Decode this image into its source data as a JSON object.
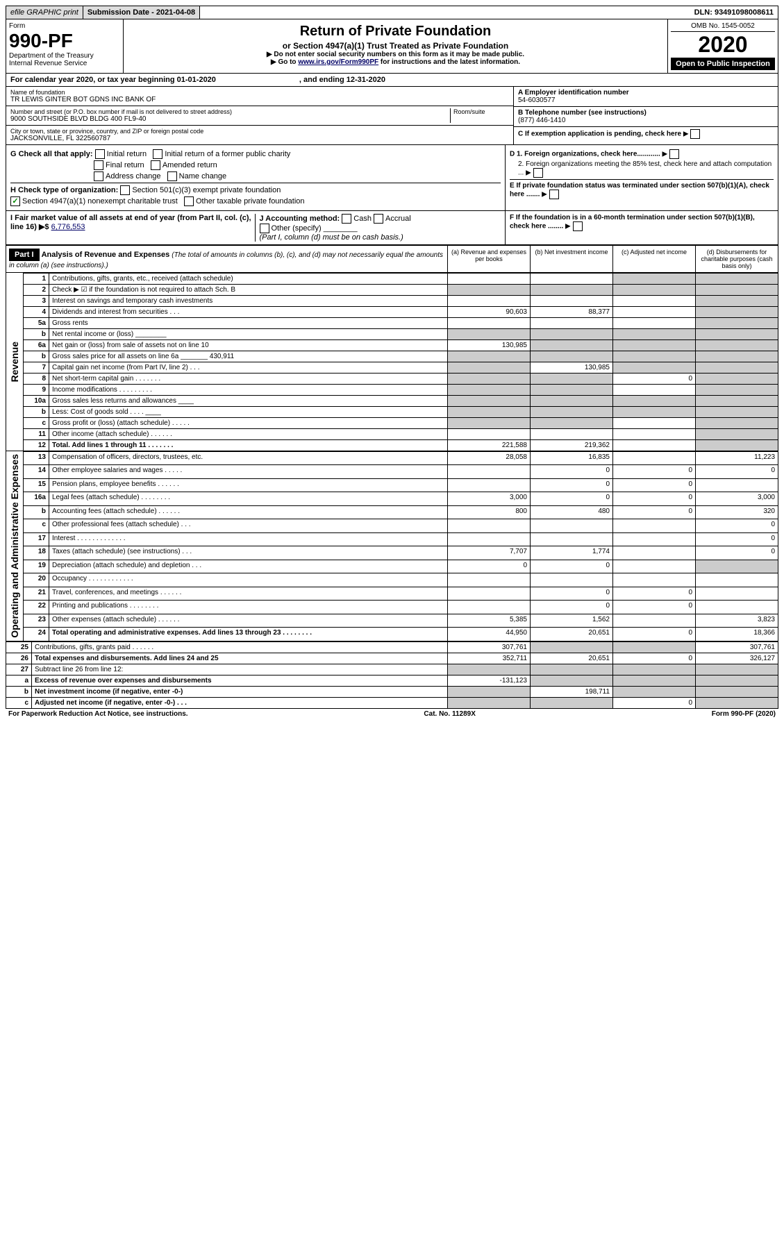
{
  "top": {
    "efile": "efile GRAPHIC print",
    "sub_lbl": "Submission Date - 2021-04-08",
    "dln": "DLN: 93491098008611"
  },
  "hdr": {
    "form_word": "Form",
    "form_num": "990-PF",
    "dept": "Department of the Treasury",
    "irs": "Internal Revenue Service",
    "title": "Return of Private Foundation",
    "subtitle": "or Section 4947(a)(1) Trust Treated as Private Foundation",
    "note1": "▶ Do not enter social security numbers on this form as it may be made public.",
    "note2": "▶ Go to ",
    "note2_link": "www.irs.gov/Form990PF",
    "note2_tail": " for instructions and the latest information.",
    "omb": "OMB No. 1545-0052",
    "year": "2020",
    "open": "Open to Public Inspection"
  },
  "cal": {
    "line": "For calendar year 2020, or tax year beginning 01-01-2020",
    "end": ", and ending 12-31-2020"
  },
  "info": {
    "name_lbl": "Name of foundation",
    "name": "TR LEWIS GINTER BOT GDNS INC BANK OF",
    "addr_lbl": "Number and street (or P.O. box number if mail is not delivered to street address)",
    "room_lbl": "Room/suite",
    "addr": "9000 SOUTHSIDE BLVD BLDG 400 FL9-40",
    "city_lbl": "City or town, state or province, country, and ZIP or foreign postal code",
    "city": "JACKSONVILLE, FL 322560787",
    "a_lbl": "A Employer identification number",
    "a_val": "54-6030577",
    "b_lbl": "B Telephone number (see instructions)",
    "b_val": "(877) 446-1410",
    "c_lbl": "C If exemption application is pending, check here",
    "d1": "D 1. Foreign organizations, check here............",
    "d2": "2. Foreign organizations meeting the 85% test, check here and attach computation ...",
    "e": "E If private foundation status was terminated under section 507(b)(1)(A), check here .......",
    "f": "F If the foundation is in a 60-month termination under section 507(b)(1)(B), check here ........"
  },
  "g": {
    "lbl": "G Check all that apply:",
    "opts": [
      "Initial return",
      "Initial return of a former public charity",
      "Final return",
      "Amended return",
      "Address change",
      "Name change"
    ]
  },
  "h": {
    "lbl": "H Check type of organization:",
    "o1": "Section 501(c)(3) exempt private foundation",
    "o2": "Section 4947(a)(1) nonexempt charitable trust",
    "o3": "Other taxable private foundation"
  },
  "i": {
    "lbl": "I Fair market value of all assets at end of year (from Part II, col. (c), line 16) ▶$ ",
    "val": "6,776,553"
  },
  "j": {
    "lbl": "J Accounting method:",
    "cash": "Cash",
    "accrual": "Accrual",
    "other": "Other (specify)",
    "note": "(Part I, column (d) must be on cash basis.)"
  },
  "part1": {
    "hdr": "Part I",
    "title": "Analysis of Revenue and Expenses ",
    "desc": "(The total of amounts in columns (b), (c), and (d) may not necessarily equal the amounts in column (a) (see instructions).)",
    "cols": [
      "(a) Revenue and expenses per books",
      "(b) Net investment income",
      "(c) Adjusted net income",
      "(d) Disbursements for charitable purposes (cash basis only)"
    ]
  },
  "vlabels": {
    "rev": "Revenue",
    "exp": "Operating and Administrative Expenses"
  },
  "rows": [
    {
      "n": "1",
      "d": "Contributions, gifts, grants, etc., received (attach schedule)",
      "a": "",
      "b": "",
      "c": "g",
      "e": "g"
    },
    {
      "n": "2",
      "d": "Check ▶ ☑ if the foundation is not required to attach Sch. B",
      "a": "g",
      "b": "g",
      "c": "g",
      "e": "g"
    },
    {
      "n": "3",
      "d": "Interest on savings and temporary cash investments",
      "a": "",
      "b": "",
      "c": "",
      "e": "g"
    },
    {
      "n": "4",
      "d": "Dividends and interest from securities   .  .  .",
      "a": "90,603",
      "b": "88,377",
      "c": "",
      "e": "g"
    },
    {
      "n": "5a",
      "d": "Gross rents",
      "a": "",
      "b": "",
      "c": "",
      "e": "g"
    },
    {
      "n": "b",
      "d": "Net rental income or (loss)  ________",
      "a": "g",
      "b": "g",
      "c": "g",
      "e": "g"
    },
    {
      "n": "6a",
      "d": "Net gain or (loss) from sale of assets not on line 10",
      "a": "130,985",
      "b": "g",
      "c": "g",
      "e": "g"
    },
    {
      "n": "b",
      "d": "Gross sales price for all assets on line 6a _______ 430,911",
      "a": "g",
      "b": "g",
      "c": "g",
      "e": "g"
    },
    {
      "n": "7",
      "d": "Capital gain net income (from Part IV, line 2)   .  .  .",
      "a": "g",
      "b": "130,985",
      "c": "g",
      "e": "g"
    },
    {
      "n": "8",
      "d": "Net short-term capital gain   .  .  .  .  .  .  .",
      "a": "g",
      "b": "g",
      "c": "0",
      "e": "g"
    },
    {
      "n": "9",
      "d": "Income modifications  .  .  .  .  .  .  .  .  .",
      "a": "g",
      "b": "g",
      "c": "",
      "e": "g"
    },
    {
      "n": "10a",
      "d": "Gross sales less returns and allowances  ____",
      "a": "g",
      "b": "g",
      "c": "g",
      "e": "g"
    },
    {
      "n": "b",
      "d": "Less: Cost of goods sold    .  .  .  .  ____",
      "a": "g",
      "b": "g",
      "c": "g",
      "e": "g"
    },
    {
      "n": "c",
      "d": "Gross profit or (loss) (attach schedule)   .  .  .  .  .",
      "a": "g",
      "b": "g",
      "c": "",
      "e": "g"
    },
    {
      "n": "11",
      "d": "Other income (attach schedule)   .  .  .  .  .  .",
      "a": "",
      "b": "",
      "c": "",
      "e": "g"
    },
    {
      "n": "12",
      "d": "Total. Add lines 1 through 11   .  .  .  .  .  .  .",
      "a": "221,588",
      "b": "219,362",
      "c": "",
      "e": "g",
      "bold": true
    },
    {
      "n": "13",
      "d": "Compensation of officers, directors, trustees, etc.",
      "a": "28,058",
      "b": "16,835",
      "c": "",
      "e": "11,223"
    },
    {
      "n": "14",
      "d": "Other employee salaries and wages   .  .  .  .  .",
      "a": "",
      "b": "0",
      "c": "0",
      "e": "0"
    },
    {
      "n": "15",
      "d": "Pension plans, employee benefits   .  .  .  .  .  .",
      "a": "",
      "b": "0",
      "c": "0",
      "e": ""
    },
    {
      "n": "16a",
      "d": "Legal fees (attach schedule)  .  .  .  .  .  .  .  .",
      "a": "3,000",
      "b": "0",
      "c": "0",
      "e": "3,000"
    },
    {
      "n": "b",
      "d": "Accounting fees (attach schedule)  .  .  .  .  .  .",
      "a": "800",
      "b": "480",
      "c": "0",
      "e": "320"
    },
    {
      "n": "c",
      "d": "Other professional fees (attach schedule)   .  .  .",
      "a": "",
      "b": "",
      "c": "",
      "e": "0"
    },
    {
      "n": "17",
      "d": "Interest  .  .  .  .  .  .  .  .  .  .  .  .  .",
      "a": "",
      "b": "",
      "c": "",
      "e": "0"
    },
    {
      "n": "18",
      "d": "Taxes (attach schedule) (see instructions)   .  .  .",
      "a": "7,707",
      "b": "1,774",
      "c": "",
      "e": "0"
    },
    {
      "n": "19",
      "d": "Depreciation (attach schedule) and depletion   .  .  .",
      "a": "0",
      "b": "0",
      "c": "",
      "e": "g"
    },
    {
      "n": "20",
      "d": "Occupancy  .  .  .  .  .  .  .  .  .  .  .  .",
      "a": "",
      "b": "",
      "c": "",
      "e": ""
    },
    {
      "n": "21",
      "d": "Travel, conferences, and meetings  .  .  .  .  .  .",
      "a": "",
      "b": "0",
      "c": "0",
      "e": ""
    },
    {
      "n": "22",
      "d": "Printing and publications  .  .  .  .  .  .  .  .",
      "a": "",
      "b": "0",
      "c": "0",
      "e": ""
    },
    {
      "n": "23",
      "d": "Other expenses (attach schedule)  .  .  .  .  .  .",
      "a": "5,385",
      "b": "1,562",
      "c": "",
      "e": "3,823"
    },
    {
      "n": "24",
      "d": "Total operating and administrative expenses. Add lines 13 through 23   .  .  .  .  .  .  .  .",
      "a": "44,950",
      "b": "20,651",
      "c": "0",
      "e": "18,366",
      "bold": true
    },
    {
      "n": "25",
      "d": "Contributions, gifts, grants paid    .  .  .  .  .  .",
      "a": "307,761",
      "b": "g",
      "c": "g",
      "e": "307,761"
    },
    {
      "n": "26",
      "d": "Total expenses and disbursements. Add lines 24 and 25",
      "a": "352,711",
      "b": "20,651",
      "c": "0",
      "e": "326,127",
      "bold": true
    },
    {
      "n": "27",
      "d": "Subtract line 26 from line 12:",
      "a": "g",
      "b": "g",
      "c": "g",
      "e": "g"
    },
    {
      "n": "a",
      "d": "Excess of revenue over expenses and disbursements",
      "a": "-131,123",
      "b": "g",
      "c": "g",
      "e": "g",
      "bold": true
    },
    {
      "n": "b",
      "d": "Net investment income (if negative, enter -0-)",
      "a": "g",
      "b": "198,711",
      "c": "g",
      "e": "g",
      "bold": true
    },
    {
      "n": "c",
      "d": "Adjusted net income (if negative, enter -0-)   .  .  .",
      "a": "g",
      "b": "g",
      "c": "0",
      "e": "g",
      "bold": true
    }
  ],
  "footer": {
    "l": "For Paperwork Reduction Act Notice, see instructions.",
    "m": "Cat. No. 11289X",
    "r": "Form 990-PF (2020)"
  }
}
